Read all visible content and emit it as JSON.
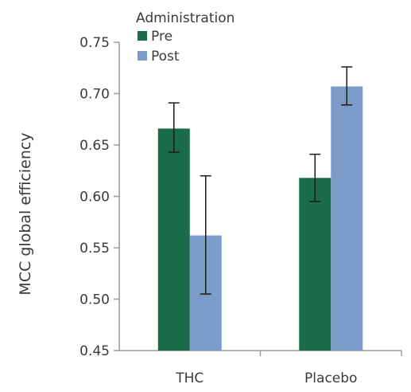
{
  "chart_data": {
    "type": "bar",
    "title": "",
    "xlabel": "",
    "ylabel": "MCC global efficiency",
    "ylim": [
      0.45,
      0.75
    ],
    "yticks": [
      0.45,
      0.5,
      0.55,
      0.6,
      0.65,
      0.7,
      0.75
    ],
    "ytick_labels": [
      "0.45",
      "0.50",
      "0.55",
      "0.60",
      "0.65",
      "0.70",
      "0.75"
    ],
    "categories": [
      "THC",
      "Placebo"
    ],
    "legend": {
      "title": "Administration",
      "placement": "top-left"
    },
    "series": [
      {
        "name": "Pre",
        "color": "#1a6b4a",
        "values": [
          0.666,
          0.618
        ],
        "error_low": [
          0.643,
          0.595
        ],
        "error_high": [
          0.691,
          0.641
        ]
      },
      {
        "name": "Post",
        "color": "#7b9cc8",
        "values": [
          0.562,
          0.707
        ],
        "error_low": [
          0.505,
          0.689
        ],
        "error_high": [
          0.62,
          0.726
        ]
      }
    ],
    "grid": false
  }
}
